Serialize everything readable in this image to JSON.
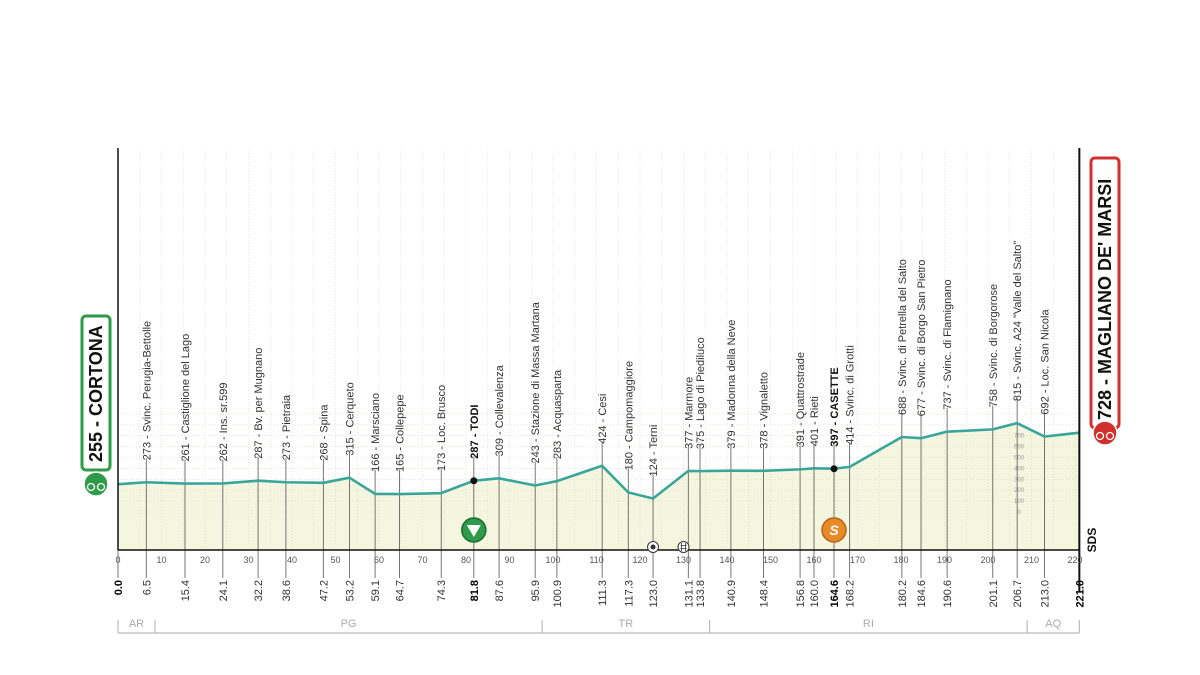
{
  "chart_data": {
    "type": "area",
    "xlabel": "",
    "ylabel": "",
    "xlim": [
      0,
      221
    ],
    "ylim": [
      0,
      900
    ],
    "x_ticks": [
      0,
      10,
      20,
      30,
      40,
      50,
      60,
      70,
      80,
      90,
      100,
      110,
      120,
      130,
      140,
      150,
      160,
      170,
      180,
      190,
      200,
      210,
      220
    ],
    "elevation_scale_ticks": [
      0,
      100,
      200,
      300,
      400,
      500,
      600,
      700
    ],
    "start": {
      "label": "255 - CORTONA",
      "km": 0.0,
      "elevation": 255,
      "color": "#2e9a4a"
    },
    "finish": {
      "label": "728 - MAGLIANO DE' MARSI",
      "km": 221.0,
      "elevation": 728,
      "color": "#d0312d"
    },
    "waypoints": [
      {
        "km": "0.0",
        "x": 0.0,
        "elev": 255,
        "label": "",
        "bold": true
      },
      {
        "km": "6.5",
        "x": 6.5,
        "elev": 273,
        "label": "273 - Svinc. Perugia-Bettolle"
      },
      {
        "km": "15.4",
        "x": 15.4,
        "elev": 261,
        "label": "261 - Castiglione del Lago"
      },
      {
        "km": "24.1",
        "x": 24.1,
        "elev": 262,
        "label": "262 - Ins. sr.599"
      },
      {
        "km": "32.2",
        "x": 32.2,
        "elev": 287,
        "label": "287 - Bv. per Mugnano"
      },
      {
        "km": "38.6",
        "x": 38.6,
        "elev": 273,
        "label": "273 - Pietraia"
      },
      {
        "km": "47.2",
        "x": 47.2,
        "elev": 268,
        "label": "268 - Spina"
      },
      {
        "km": "53.2",
        "x": 53.2,
        "elev": 315,
        "label": "315 - Cerqueto"
      },
      {
        "km": "59.1",
        "x": 59.1,
        "elev": 166,
        "label": "166 - Marsciano"
      },
      {
        "km": "64.7",
        "x": 64.7,
        "elev": 165,
        "label": "165 - Collepepe"
      },
      {
        "km": "74.3",
        "x": 74.3,
        "elev": 173,
        "label": "173 - Loc. Brusco"
      },
      {
        "km": "81.8",
        "x": 81.8,
        "elev": 287,
        "label": "287 - TODI",
        "bold": true
      },
      {
        "km": "87.6",
        "x": 87.6,
        "elev": 309,
        "label": "309 - Collevalenza"
      },
      {
        "km": "95.9",
        "x": 95.9,
        "elev": 243,
        "label": "243 - Stazione di Massa Martana"
      },
      {
        "km": "100.9",
        "x": 100.9,
        "elev": 283,
        "label": "283 - Acquasparta"
      },
      {
        "km": "111.3",
        "x": 111.3,
        "elev": 424,
        "label": "424 - Cesi"
      },
      {
        "km": "117.3",
        "x": 117.3,
        "elev": 180,
        "label": "180 - Campomaggiore"
      },
      {
        "km": "123.0",
        "x": 123.0,
        "elev": 124,
        "label": "124 - Terni"
      },
      {
        "km": "131.1",
        "x": 131.1,
        "elev": 377,
        "label": "377 - Marmore"
      },
      {
        "km": "133.8",
        "x": 133.8,
        "elev": 375,
        "label": "375 - Lago di Piediluco"
      },
      {
        "km": "140.9",
        "x": 140.9,
        "elev": 379,
        "label": "379 - Madonna della Neve"
      },
      {
        "km": "148.4",
        "x": 148.4,
        "elev": 378,
        "label": "378 - Vignaletto"
      },
      {
        "km": "156.8",
        "x": 156.8,
        "elev": 391,
        "label": "391 - Quattrostrade"
      },
      {
        "km": "160.0",
        "x": 160.0,
        "elev": 401,
        "label": "401 - Rieti"
      },
      {
        "km": "164.6",
        "x": 164.6,
        "elev": 397,
        "label": "397 - CASETTE",
        "bold": true
      },
      {
        "km": "168.2",
        "x": 168.2,
        "elev": 414,
        "label": "414 - Svinc. di Grotti"
      },
      {
        "km": "180.2",
        "x": 180.2,
        "elev": 688,
        "label": "688 - Svinc. di Petrella del Salto"
      },
      {
        "km": "184.6",
        "x": 184.6,
        "elev": 677,
        "label": "677 - Svinc. di Borgo San Pietro"
      },
      {
        "km": "190.6",
        "x": 190.6,
        "elev": 737,
        "label": "737 - Svinc. di Flamignano"
      },
      {
        "km": "201.1",
        "x": 201.1,
        "elev": 758,
        "label": "758 - Svinc. di Borgorose"
      },
      {
        "km": "206.7",
        "x": 206.7,
        "elev": 815,
        "label": "815 - Svinc. A24 \"Valle del Salto\""
      },
      {
        "km": "213.0",
        "x": 213.0,
        "elev": 692,
        "label": "692 - Loc. San Nicola"
      },
      {
        "km": "221.0",
        "x": 221.0,
        "elev": 728,
        "label": "",
        "bold": true
      }
    ],
    "regions": [
      {
        "name": "AR",
        "from": 0,
        "to": 8.5
      },
      {
        "name": "PG",
        "from": 8.5,
        "to": 97.5
      },
      {
        "name": "TR",
        "from": 97.5,
        "to": 136
      },
      {
        "name": "RI",
        "from": 136,
        "to": 209
      },
      {
        "name": "AQ",
        "from": 209,
        "to": 221
      }
    ],
    "markers": [
      {
        "type": "intermediate-sprint",
        "km": 81.8,
        "color": "#2e9a4a"
      },
      {
        "type": "sprint-S",
        "km": 164.6,
        "color": "#e8892a",
        "label": "S"
      },
      {
        "type": "feed-zone",
        "km": 123.0
      },
      {
        "type": "level-crossing",
        "km": 130.0
      }
    ],
    "sds_label": "SDS",
    "line_color": "#3aa59a",
    "fill_color": "#f5f6e0"
  }
}
